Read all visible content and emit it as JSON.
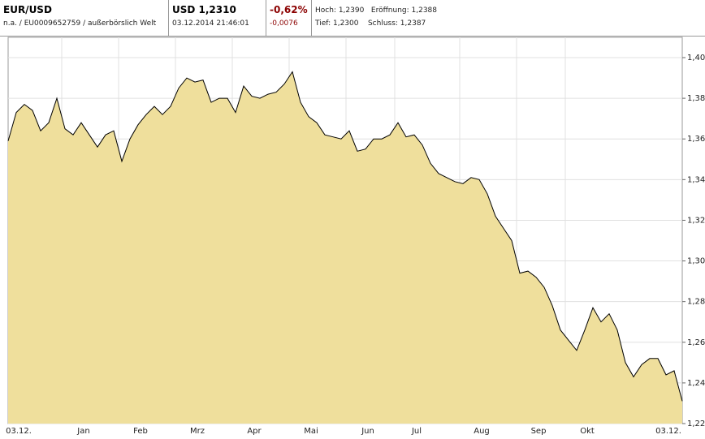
{
  "header": {
    "symbol": "EUR/USD",
    "subtitle": "n.a. / EU0009652759 / außerbörslich Welt",
    "price": "USD 1,2310",
    "timestamp": "03.12.2014 21:46:01",
    "change_pct": "-0,62%",
    "change_abs": "-0,0076",
    "high": "Hoch: 1,2390",
    "open": "Eröffnung: 1,2388",
    "low": "Tief: 1,2300",
    "close": "Schluss: 1,2387"
  },
  "chart_data": {
    "type": "area",
    "color": "#efdf9c",
    "line_color": "#000000",
    "grid": true,
    "categories": [
      null,
      "03.12.",
      null,
      null,
      null,
      null,
      null,
      null,
      null,
      "Jan",
      null,
      null,
      null,
      null,
      null,
      null,
      "Feb",
      null,
      null,
      null,
      null,
      null,
      null,
      "Mrz",
      null,
      null,
      null,
      null,
      null,
      null,
      "Apr",
      null,
      null,
      null,
      null,
      null,
      null,
      "Mai",
      null,
      null,
      null,
      null,
      null,
      null,
      "Jun",
      null,
      null,
      null,
      null,
      null,
      "Jul",
      null,
      null,
      null,
      null,
      null,
      null,
      null,
      "Aug",
      null,
      null,
      null,
      null,
      null,
      null,
      "Sep",
      null,
      null,
      null,
      null,
      null,
      "Okt",
      null,
      null,
      null,
      null,
      null,
      null,
      null,
      null,
      null,
      "03.12.",
      null,
      null
    ],
    "values": [
      1.359,
      1.373,
      1.377,
      1.374,
      1.364,
      1.368,
      1.38,
      1.365,
      1.362,
      1.368,
      1.362,
      1.356,
      1.362,
      1.364,
      1.349,
      1.36,
      1.367,
      1.372,
      1.376,
      1.372,
      1.376,
      1.385,
      1.39,
      1.388,
      1.389,
      1.378,
      1.38,
      1.38,
      1.373,
      1.386,
      1.381,
      1.38,
      1.382,
      1.383,
      1.387,
      1.393,
      1.378,
      1.371,
      1.368,
      1.362,
      1.361,
      1.36,
      1.364,
      1.354,
      1.355,
      1.36,
      1.36,
      1.362,
      1.368,
      1.361,
      1.362,
      1.357,
      1.348,
      1.343,
      1.341,
      1.339,
      1.338,
      1.341,
      1.34,
      1.333,
      1.322,
      1.316,
      1.31,
      1.294,
      1.295,
      1.292,
      1.287,
      1.278,
      1.266,
      1.261,
      1.256,
      1.266,
      1.277,
      1.27,
      1.274,
      1.266,
      1.25,
      1.243,
      1.249,
      1.252,
      1.252,
      1.244,
      1.246,
      1.231
    ],
    "ylim": [
      1.22,
      1.4
    ],
    "yticks": [
      {
        "value": 1.22,
        "label": "1,22"
      },
      {
        "value": 1.24,
        "label": "1,24"
      },
      {
        "value": 1.26,
        "label": "1,26"
      },
      {
        "value": 1.28,
        "label": "1,28"
      },
      {
        "value": 1.3,
        "label": "1,30"
      },
      {
        "value": 1.32,
        "label": "1,32"
      },
      {
        "value": 1.34,
        "label": "1,34"
      },
      {
        "value": 1.36,
        "label": "1,36"
      },
      {
        "value": 1.38,
        "label": "1,38"
      },
      {
        "value": 1.4,
        "label": "1,40"
      }
    ]
  }
}
